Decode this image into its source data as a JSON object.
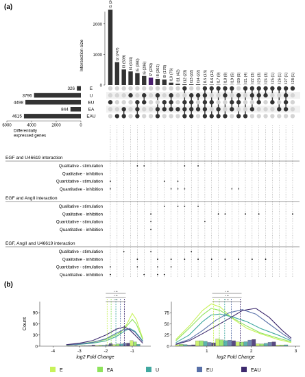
{
  "panel_labels": {
    "a": "(a)",
    "b": "(b)"
  },
  "colors": {
    "bar": "#333333",
    "highlight": "#4b1f6f",
    "dot_off": "#d4d4d4",
    "E": "#c8f25a",
    "EA": "#8ee35b",
    "U": "#41a8a0",
    "EU": "#5870a8",
    "EAU": "#3d2a6e"
  },
  "chart_data": [
    {
      "type": "bar",
      "subtype": "upset-intersections",
      "ylabel": "Intersection size",
      "ylim": [
        0,
        2600
      ],
      "yticks": [
        "0",
        "1000",
        "2000"
      ],
      "categories": [
        "I1",
        "I2",
        "I3",
        "I4",
        "I5",
        "I6",
        "I7",
        "I8",
        "I9",
        "I10",
        "I11",
        "I12",
        "I13",
        "I14",
        "I15",
        "I16",
        "I17",
        "I18",
        "I19",
        "I20",
        "I21",
        "I22",
        "I23",
        "I24",
        "I25",
        "I26",
        "I27",
        "I28"
      ],
      "values": [
        2464,
        747,
        509,
        444,
        390,
        296,
        239,
        202,
        178,
        76,
        42,
        23,
        22,
        22,
        13,
        12,
        9,
        8,
        5,
        5,
        4,
        3,
        3,
        3,
        1,
        1,
        1,
        1
      ],
      "labels": [
        "I1 (2464)",
        "I2 (747)",
        "I3 (509)",
        "I4 (444)",
        "I5 (390)",
        "I6 (296)",
        "I7 (239)",
        "I8 (202)",
        "I9 (178)",
        "I10 (76)",
        "I11 (42)",
        "I12 (23)",
        "I13 (22)",
        "I14 (22)",
        "I15 (13)",
        "I16 (12)",
        "I17 (9)",
        "I18 (8)",
        "I19 (5)",
        "I20 (5)",
        "I21 (4)",
        "I22 (3)",
        "I23 (3)",
        "I24 (3)",
        "I25 (1)",
        "I26 (1)",
        "I27 (1)",
        "I28 (1)"
      ],
      "highlight_index": 6
    },
    {
      "type": "bar",
      "subtype": "set-size",
      "xlabel": "Differentially expressed genes",
      "xlim": [
        0,
        6000
      ],
      "xticks": [
        "6000",
        "4000",
        "2000",
        "0"
      ],
      "categories": [
        "E",
        "U",
        "EU",
        "EA",
        "EAU"
      ],
      "values": [
        326,
        3796,
        4498,
        844,
        4615
      ],
      "value_labels": [
        "326",
        "3796",
        "4498",
        "844",
        "4615"
      ]
    },
    {
      "type": "line",
      "subtype": "density-panel-left",
      "xlabel": "log2 Fold Change",
      "ylabel": "Count",
      "xlim": [
        -4.5,
        -0.3
      ],
      "xticks": [
        -4,
        -3,
        -2,
        -1
      ],
      "xticklabels": [
        "-4",
        "-3",
        "-2",
        "-1"
      ],
      "ylim": [
        0,
        120
      ],
      "yticks": [
        "0",
        "30",
        "60",
        "90"
      ],
      "series": [
        {
          "key": "E",
          "x": [
            -3.5,
            -3,
            -2.5,
            -2,
            -1.5,
            -1.2,
            -1,
            -0.85,
            -0.6
          ],
          "y": [
            2,
            5,
            9,
            14,
            30,
            60,
            88,
            72,
            20
          ]
        },
        {
          "key": "EA",
          "x": [
            -3.5,
            -3,
            -2.5,
            -2,
            -1.5,
            -1.2,
            -1,
            -0.85,
            -0.6
          ],
          "y": [
            3,
            6,
            11,
            18,
            35,
            55,
            72,
            60,
            18
          ]
        },
        {
          "key": "U",
          "x": [
            -3.5,
            -3,
            -2.5,
            -2,
            -1.6,
            -1.3,
            -1.1,
            -0.9,
            -0.6
          ],
          "y": [
            3,
            5,
            8,
            14,
            26,
            40,
            48,
            40,
            14
          ]
        },
        {
          "key": "EU",
          "x": [
            -3.5,
            -3,
            -2.5,
            -2,
            -1.6,
            -1.3,
            -1.1,
            -0.9,
            -0.6
          ],
          "y": [
            3,
            6,
            10,
            20,
            35,
            45,
            46,
            38,
            12
          ]
        },
        {
          "key": "EAU",
          "x": [
            -3.5,
            -3,
            -2.5,
            -2,
            -1.6,
            -1.3,
            -1.1,
            -0.9,
            -0.6
          ],
          "y": [
            4,
            8,
            15,
            30,
            46,
            52,
            44,
            30,
            8
          ]
        }
      ],
      "vlines": [
        -1.95,
        -1.8,
        -1.62,
        -1.45,
        -1.3
      ],
      "sig_labels": [
        "*  **",
        "*  **",
        "*  **"
      ]
    },
    {
      "type": "line",
      "subtype": "density-panel-right",
      "xlabel": "log2 Fold Change",
      "xlim": [
        0.2,
        3.1
      ],
      "xticks": [
        1,
        2,
        3
      ],
      "xticklabels": [
        "1",
        "2",
        "3"
      ],
      "ylim": [
        0,
        100
      ],
      "yticks": [
        "0",
        "25",
        "50",
        "75"
      ],
      "series": [
        {
          "key": "E",
          "x": [
            0.3,
            0.6,
            0.9,
            1.1,
            1.3,
            1.6,
            1.9,
            2.2,
            2.6,
            2.9
          ],
          "y": [
            15,
            45,
            80,
            95,
            88,
            60,
            40,
            28,
            15,
            8
          ]
        },
        {
          "key": "EA",
          "x": [
            0.3,
            0.6,
            0.9,
            1.1,
            1.3,
            1.6,
            1.9,
            2.2,
            2.6,
            2.9
          ],
          "y": [
            12,
            40,
            70,
            85,
            80,
            62,
            45,
            30,
            18,
            10
          ]
        },
        {
          "key": "U",
          "x": [
            0.3,
            0.6,
            0.9,
            1.1,
            1.3,
            1.6,
            1.9,
            2.2,
            2.6,
            2.9
          ],
          "y": [
            8,
            25,
            55,
            70,
            72,
            65,
            55,
            40,
            25,
            12
          ]
        },
        {
          "key": "EU",
          "x": [
            0.3,
            0.6,
            0.9,
            1.2,
            1.5,
            1.8,
            2.1,
            2.4,
            2.7,
            2.9
          ],
          "y": [
            5,
            15,
            35,
            58,
            75,
            82,
            72,
            50,
            28,
            15
          ]
        },
        {
          "key": "EAU",
          "x": [
            0.3,
            0.6,
            0.9,
            1.2,
            1.5,
            1.8,
            2.1,
            2.4,
            2.7,
            2.9
          ],
          "y": [
            4,
            12,
            28,
            45,
            62,
            80,
            85,
            65,
            35,
            18
          ]
        }
      ],
      "vlines": [
        1.15,
        1.28,
        1.4,
        1.55,
        1.75
      ],
      "sig_labels": [
        "*  **",
        "*  **",
        "*  **"
      ]
    }
  ],
  "upset_sets": [
    "E",
    "U",
    "EU",
    "EA",
    "EAU"
  ],
  "upset_matrix": [
    [
      0,
      0,
      1,
      0,
      0
    ],
    [
      0,
      0,
      0,
      0,
      1
    ],
    [
      0,
      0,
      0,
      1,
      1
    ],
    [
      0,
      1,
      0,
      0,
      0
    ],
    [
      0,
      0,
      1,
      1,
      1
    ],
    [
      0,
      1,
      1,
      0,
      0
    ],
    [
      0,
      0,
      0,
      0,
      0
    ],
    [
      0,
      1,
      0,
      1,
      1
    ],
    [
      0,
      0,
      1,
      1,
      0
    ],
    [
      0,
      1,
      1,
      1,
      0
    ],
    [
      0,
      0,
      0,
      1,
      0
    ],
    [
      1,
      0,
      1,
      1,
      1
    ],
    [
      0,
      1,
      1,
      1,
      1
    ],
    [
      0,
      1,
      0,
      1,
      0
    ],
    [
      1,
      1,
      1,
      1,
      1
    ],
    [
      1,
      0,
      1,
      0,
      1
    ],
    [
      1,
      0,
      0,
      1,
      1
    ],
    [
      1,
      1,
      0,
      0,
      1
    ],
    [
      1,
      0,
      1,
      1,
      0
    ],
    [
      0,
      1,
      1,
      0,
      1
    ],
    [
      1,
      0,
      0,
      0,
      1
    ],
    [
      1,
      1,
      0,
      1,
      0
    ],
    [
      1,
      1,
      1,
      0,
      0
    ],
    [
      1,
      1,
      0,
      0,
      0
    ],
    [
      1,
      0,
      1,
      0,
      0
    ],
    [
      1,
      0,
      0,
      1,
      0
    ],
    [
      1,
      1,
      1,
      1,
      0
    ],
    [
      1,
      0,
      0,
      0,
      0
    ]
  ],
  "interaction_sections": [
    {
      "title": "EGF and U46619 interaction",
      "rows": [
        "Qualitative - stimulation",
        "Qualitative - inhibition",
        "Quantitative - stimulation",
        "Quantitative - inhibition"
      ],
      "marks": [
        [
          4,
          5,
          11,
          13
        ],
        [],
        [
          0,
          8,
          10
        ],
        [
          0,
          9,
          10,
          11,
          18,
          19
        ]
      ]
    },
    {
      "title": "EGF and AngII interaction",
      "rows": [
        "Qualitative - stimulation",
        "Qualitative - inhibition",
        "Quantitative - stimulation",
        "Quantitative - inhibition"
      ],
      "marks": [
        [
          8,
          10,
          11,
          13
        ],
        [
          6,
          16,
          17,
          20,
          22,
          27
        ],
        [
          6,
          14
        ],
        [
          6
        ]
      ]
    },
    {
      "title": "EGF, AngII and U46619 interaction",
      "rows": [
        "Qualitative - stimulation",
        "Qualitative - inhibition",
        "Quantitative - stimulation",
        "Quantitative - inhibition"
      ],
      "marks": [
        [
          2,
          6,
          12
        ],
        [
          4,
          7,
          9,
          11,
          13,
          15,
          17,
          19,
          21,
          23
        ],
        [
          0,
          4,
          7,
          9
        ],
        [
          0,
          5,
          7,
          8
        ]
      ]
    }
  ],
  "legend": [
    {
      "key": "E",
      "label": "E"
    },
    {
      "key": "EA",
      "label": "EA"
    },
    {
      "key": "U",
      "label": "U"
    },
    {
      "key": "EU",
      "label": "EU"
    },
    {
      "key": "EAU",
      "label": "EAU"
    }
  ]
}
